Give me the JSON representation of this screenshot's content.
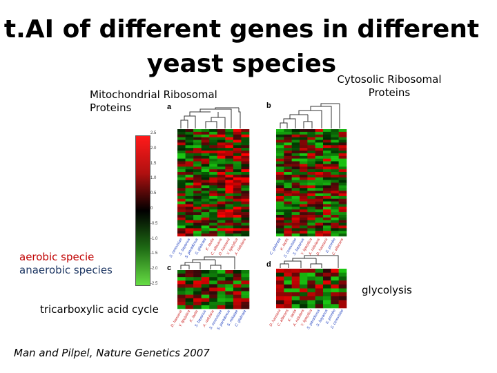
{
  "title_line1": "t.AI of different genes in different",
  "title_line2": "yeast species",
  "labels": {
    "mito": [
      "Mitochondrial Ribosomal",
      "Proteins"
    ],
    "cyto": [
      "Cytosolic Ribosomal",
      "Proteins"
    ],
    "aerobic": "aerobic specie",
    "anaerobic": "anaerobic species",
    "glycolysis": "glycolysis",
    "tca": "tricarboxylic acid cycle",
    "citation": "Man and Pilpel, Nature Genetics 2007"
  },
  "panels": {
    "a": "a",
    "b": "b",
    "c": "c",
    "d": "d"
  },
  "colorbar": {
    "ticks": [
      "2.5",
      "2.0",
      "1.5",
      "1.0",
      "0.5",
      "0",
      "-0.5",
      "-1.0",
      "-1.5",
      "-2.0",
      "-2.5"
    ],
    "colors": {
      "high": "#ff1a1a",
      "mid": "#000000",
      "low": "#66dd44"
    }
  },
  "species": {
    "a": [
      "S. cerevisiae",
      "S. bayanus",
      "S. paradoxus",
      "S. glabrata",
      "K. lactis",
      "C. albicans",
      "D. hansenii",
      "Y. lipolytica",
      "A. nidulans"
    ],
    "b": [
      "C. glabrata",
      "K. lactis",
      "S. cerevisiae",
      "S. bayanus",
      "Y. lipolytica",
      "A. nidulans",
      "D. hansenii",
      "S. pombe",
      "C. albicans"
    ],
    "c": [
      "D. hansenii",
      "Y. lipolytica",
      "K. lactis",
      "S. bayanus",
      "A. nidulans",
      "S. cerevisiae",
      "S. paradoxus",
      "S. mikatae",
      "C. glabrata"
    ],
    "d": [
      "D. hansenii",
      "C. albicans",
      "K. lactis",
      "A. nidulans",
      "Y. lipolytica",
      "S. paradoxus",
      "S. bayanus",
      "S. pombe",
      "S. cerevisiae"
    ]
  },
  "species_colors": {
    "a": [
      "#1f3fbf",
      "#1f3fbf",
      "#1f3fbf",
      "#1f3fbf",
      "#cc2222",
      "#cc2222",
      "#cc2222",
      "#cc2222",
      "#cc2222"
    ],
    "b": [
      "#1f3fbf",
      "#cc2222",
      "#1f3fbf",
      "#1f3fbf",
      "#cc2222",
      "#cc2222",
      "#cc2222",
      "#1f3fbf",
      "#cc2222"
    ],
    "c": [
      "#cc2222",
      "#cc2222",
      "#cc2222",
      "#1f3fbf",
      "#cc2222",
      "#1f3fbf",
      "#1f3fbf",
      "#1f3fbf",
      "#1f3fbf"
    ],
    "d": [
      "#cc2222",
      "#cc2222",
      "#cc2222",
      "#cc2222",
      "#cc2222",
      "#1f3fbf",
      "#1f3fbf",
      "#1f3fbf",
      "#1f3fbf"
    ]
  }
}
